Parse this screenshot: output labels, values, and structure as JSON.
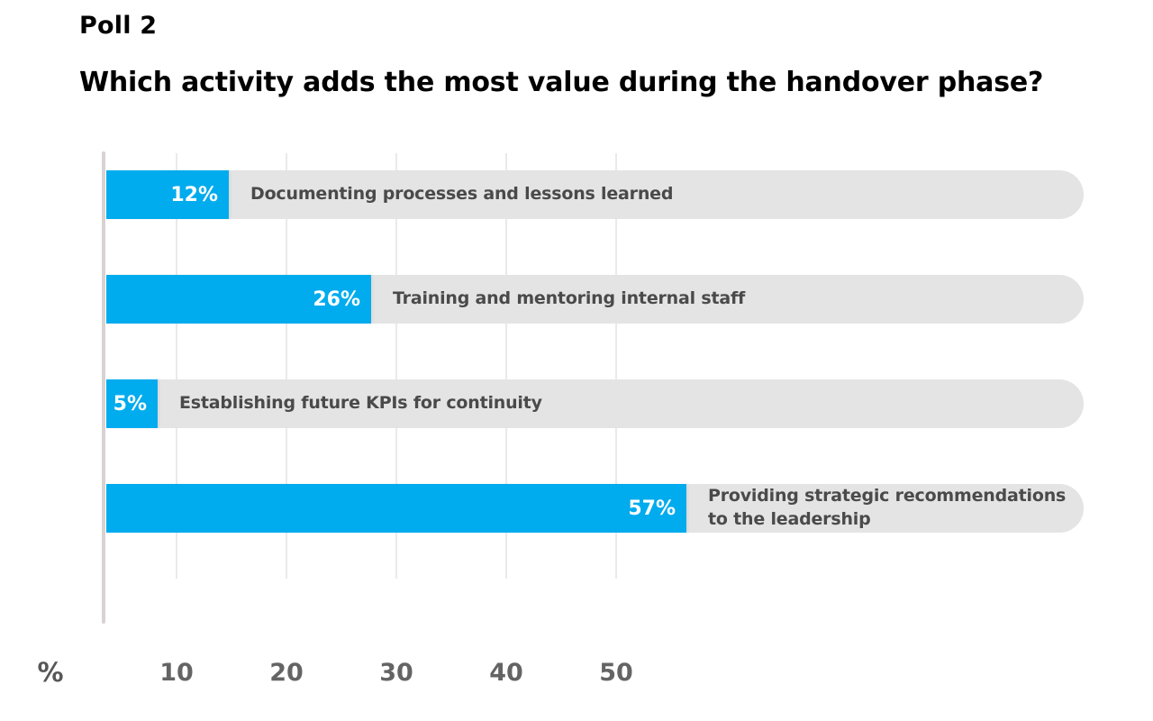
{
  "header": {
    "title": "Poll 2",
    "question": "Which activity adds the most value during the handover phase?"
  },
  "chart_data": {
    "type": "bar",
    "orientation": "horizontal",
    "title": "Which activity adds the most value during the handover phase?",
    "categories": [
      "Documenting processes and lessons learned",
      "Training and mentoring internal staff",
      "Establishing future KPIs for continuity",
      "Providing strategic recommendations to the leadership"
    ],
    "values": [
      12,
      26,
      5,
      57
    ],
    "value_labels": [
      "12%",
      "26%",
      "5%",
      "57%"
    ],
    "unit": "%",
    "x_axis": {
      "unit_label": "%",
      "ticks": [
        10,
        20,
        30,
        40,
        50
      ],
      "tick_labels": [
        "10",
        "20",
        "30",
        "40",
        "50"
      ],
      "range": [
        0,
        96
      ]
    },
    "grid": true,
    "legend": "none",
    "colors": {
      "bar": "#00abee",
      "track": "#e5e4e4",
      "value_label": "#ffffff",
      "category_label": "#4a4a4a",
      "axis_tick": "#646464",
      "gridline": "#ece9e9",
      "axis_line": "#d8d2d2",
      "title": "#000000"
    }
  }
}
